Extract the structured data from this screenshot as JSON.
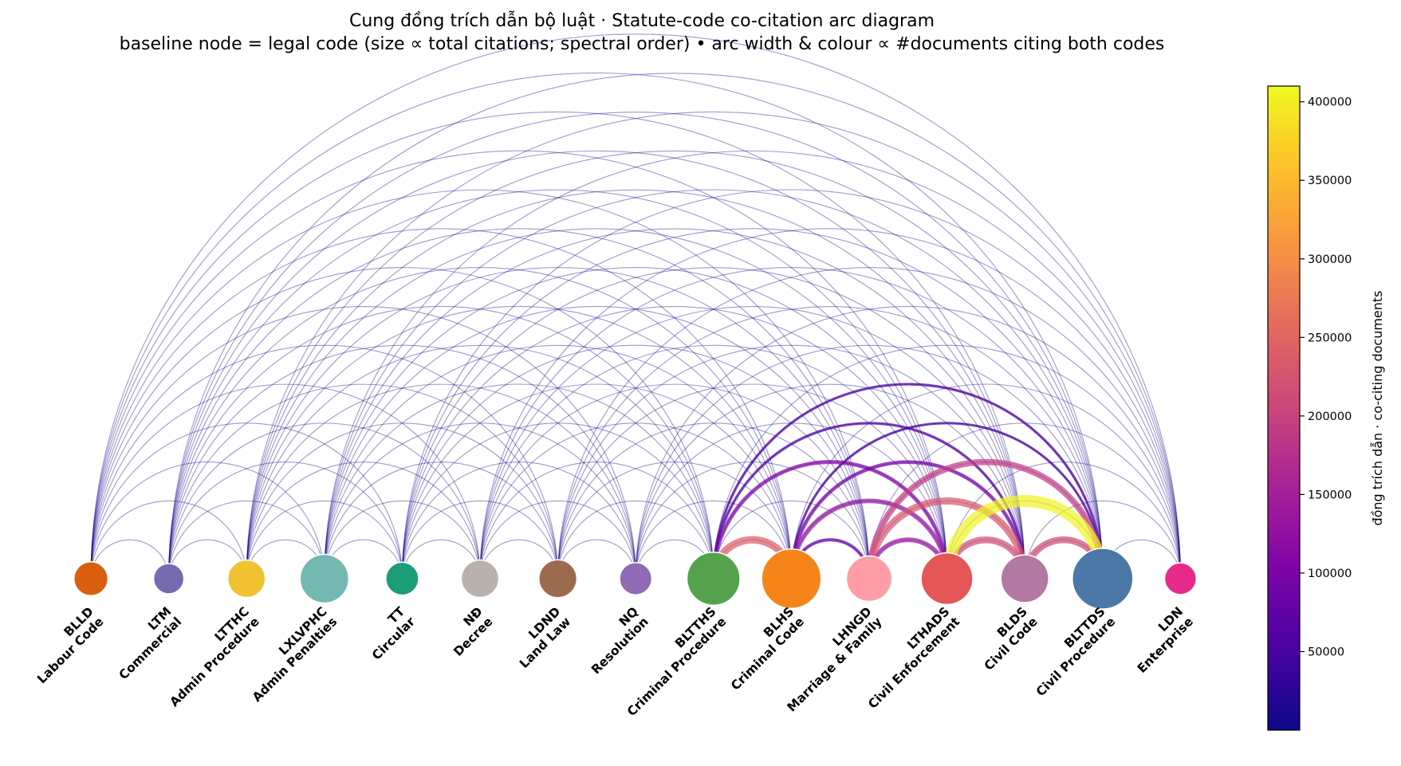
{
  "title": {
    "line1": "Cung đồng trích dẫn bộ luật · Statute-code co-citation arc diagram",
    "line2": "baseline node = legal code (size ∝ total citations; spectral order) • arc width & colour ∝ #documents citing both codes"
  },
  "colorbar": {
    "label": "đồng trích dẫn · co-citing documents",
    "min": 0,
    "max": 410000,
    "ticks": [
      {
        "value": 50000,
        "label": "50000"
      },
      {
        "value": 100000,
        "label": "100000"
      },
      {
        "value": 150000,
        "label": "150000"
      },
      {
        "value": 200000,
        "label": "200000"
      },
      {
        "value": 250000,
        "label": "250000"
      },
      {
        "value": 300000,
        "label": "300000"
      },
      {
        "value": 350000,
        "label": "350000"
      },
      {
        "value": 400000,
        "label": "400000"
      }
    ],
    "colormap": "plasma"
  },
  "nodes": [
    {
      "code": "BLLD",
      "name": "Labour Code",
      "color": "#d95f0e",
      "size": 0.18
    },
    {
      "code": "LTM",
      "name": "Commercial",
      "color": "#756bb1",
      "size": 0.12
    },
    {
      "code": "LTTHC",
      "name": "Admin Procedure",
      "color": "#f1c232",
      "size": 0.25
    },
    {
      "code": "LXLVPHC",
      "name": "Admin Penalties",
      "color": "#74b9b1",
      "size": 0.55
    },
    {
      "code": "TT",
      "name": "Circular",
      "color": "#1b9e77",
      "size": 0.16
    },
    {
      "code": "NĐ",
      "name": "Decree",
      "color": "#bab0ac",
      "size": 0.25
    },
    {
      "code": "LDND",
      "name": "Land Law",
      "color": "#9c6b4e",
      "size": 0.26
    },
    {
      "code": "NQ",
      "name": "Resolution",
      "color": "#8f6ab5",
      "size": 0.15
    },
    {
      "code": "BLTTHS",
      "name": "Criminal Procedure",
      "color": "#54a24b",
      "size": 0.7
    },
    {
      "code": "BLHS",
      "name": "Criminal Code",
      "color": "#f58518",
      "size": 0.95
    },
    {
      "code": "LHNGD",
      "name": "Marriage & Family",
      "color": "#ff9da6",
      "size": 0.45
    },
    {
      "code": "LTHADS",
      "name": "Civil Enforcement",
      "color": "#e45756",
      "size": 0.65
    },
    {
      "code": "BLDS",
      "name": "Civil Code",
      "color": "#b279a2",
      "size": 0.52
    },
    {
      "code": "BLTTDS",
      "name": "Civil Procedure",
      "color": "#4c78a8",
      "size": 1.0
    },
    {
      "code": "LDN",
      "name": "Enterprise",
      "color": "#e7298a",
      "size": 0.14
    }
  ],
  "links": [
    {
      "source": "BLTTDS",
      "target": "LTHADS",
      "value": 405000
    },
    {
      "source": "BLDS",
      "target": "LHNGD",
      "value": 230000
    },
    {
      "source": "BLTTDS",
      "target": "LHNGD",
      "value": 190000
    },
    {
      "source": "BLTTHS",
      "target": "BLHS",
      "value": 240000
    },
    {
      "source": "BLDS",
      "target": "LTHADS",
      "value": 215000
    },
    {
      "source": "BLTTDS",
      "target": "BLDS",
      "value": 210000
    },
    {
      "source": "LHNGD",
      "target": "LTHADS",
      "value": 135000
    },
    {
      "source": "BLHS",
      "target": "LTHADS",
      "value": 130000
    },
    {
      "source": "BLTTHS",
      "target": "LTHADS",
      "value": 105000
    },
    {
      "source": "BLHS",
      "target": "BLDS",
      "value": 95000
    },
    {
      "source": "BLHS",
      "target": "LHNGD",
      "value": 80000
    },
    {
      "source": "BLTTHS",
      "target": "BLDS",
      "value": 60000
    },
    {
      "source": "BLTTHS",
      "target": "BLTTDS",
      "value": 55000
    },
    {
      "source": "BLHS",
      "target": "BLTTDS",
      "value": 50000
    }
  ]
}
